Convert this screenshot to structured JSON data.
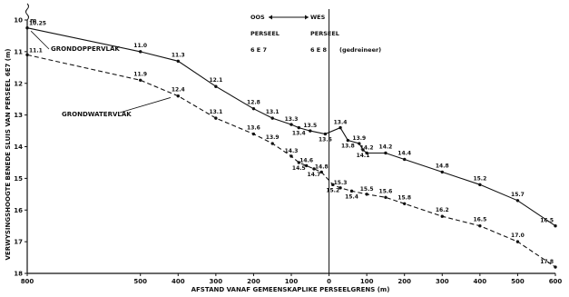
{
  "chart_data": {
    "type": "line",
    "title": "",
    "xlabel": "AFSTAND VANAF GEMEENSKAPLIKE PERSEELGRENS (m)",
    "ylabel": "VERWYSINGSHOOGTE BENEDE SLUIS VAN PERSEEL 6E7 (m)",
    "xlim": [
      -800,
      600
    ],
    "ylim": [
      10,
      18
    ],
    "y_inverted": true,
    "x_ticks": [
      {
        "value": -800,
        "label": "800"
      },
      {
        "value": -500,
        "label": "500"
      },
      {
        "value": -400,
        "label": "400"
      },
      {
        "value": -300,
        "label": "300"
      },
      {
        "value": -200,
        "label": "200"
      },
      {
        "value": -100,
        "label": "100"
      },
      {
        "value": 0,
        "label": "0"
      },
      {
        "value": 100,
        "label": "100"
      },
      {
        "value": 200,
        "label": "200"
      },
      {
        "value": 300,
        "label": "300"
      },
      {
        "value": 400,
        "label": "400"
      },
      {
        "value": 500,
        "label": "500"
      },
      {
        "value": 600,
        "label": "600"
      }
    ],
    "y_ticks": [
      {
        "value": 10,
        "label": "10"
      },
      {
        "value": 11,
        "label": "11"
      },
      {
        "value": 12,
        "label": "12"
      },
      {
        "value": 13,
        "label": "13"
      },
      {
        "value": 14,
        "label": "14"
      },
      {
        "value": 15,
        "label": "15"
      },
      {
        "value": 16,
        "label": "16"
      },
      {
        "value": 17,
        "label": "17"
      },
      {
        "value": 18,
        "label": "18"
      }
    ],
    "y_top_label": "m",
    "series": [
      {
        "name": "GRONDOPPERVLAK",
        "style": "solid",
        "points": [
          {
            "x": -800,
            "y": 10.25,
            "label": "10.25"
          },
          {
            "x": -500,
            "y": 11.0,
            "label": "11.0"
          },
          {
            "x": -400,
            "y": 11.3,
            "label": "11.3"
          },
          {
            "x": -300,
            "y": 12.1,
            "label": "12.1"
          },
          {
            "x": -200,
            "y": 12.8,
            "label": "12.8"
          },
          {
            "x": -150,
            "y": 13.1,
            "label": "13.1"
          },
          {
            "x": -100,
            "y": 13.3,
            "label": "13.3"
          },
          {
            "x": -80,
            "y": 13.4,
            "label": "13.4"
          },
          {
            "x": -50,
            "y": 13.5,
            "label": "13.5"
          },
          {
            "x": -10,
            "y": 13.6,
            "label": "13.6"
          },
          {
            "x": 30,
            "y": 13.4,
            "label": "13.4"
          },
          {
            "x": 50,
            "y": 13.8,
            "label": "13.8"
          },
          {
            "x": 80,
            "y": 13.9,
            "label": "13.9"
          },
          {
            "x": 90,
            "y": 14.1,
            "label": "14.1"
          },
          {
            "x": 100,
            "y": 14.2,
            "label": "14.2"
          },
          {
            "x": 150,
            "y": 14.2,
            "label": "14.2"
          },
          {
            "x": 200,
            "y": 14.4,
            "label": "14.4"
          },
          {
            "x": 300,
            "y": 14.8,
            "label": "14.8"
          },
          {
            "x": 400,
            "y": 15.2,
            "label": "15.2"
          },
          {
            "x": 500,
            "y": 15.7,
            "label": "15.7"
          },
          {
            "x": 600,
            "y": 16.5,
            "label": "16.5"
          }
        ]
      },
      {
        "name": "GRONDWATERVLAK",
        "style": "dashed",
        "points": [
          {
            "x": -800,
            "y": 11.1,
            "label": "11.1"
          },
          {
            "x": -500,
            "y": 11.9,
            "label": "11.9"
          },
          {
            "x": -400,
            "y": 12.4,
            "label": "12.4"
          },
          {
            "x": -300,
            "y": 13.1,
            "label": "13.1"
          },
          {
            "x": -200,
            "y": 13.6,
            "label": "13.6"
          },
          {
            "x": -150,
            "y": 13.9,
            "label": "13.9"
          },
          {
            "x": -100,
            "y": 14.3,
            "label": "14.3"
          },
          {
            "x": -80,
            "y": 14.5,
            "label": "14.5"
          },
          {
            "x": -60,
            "y": 14.6,
            "label": "14.6"
          },
          {
            "x": -40,
            "y": 14.7,
            "label": "14.7"
          },
          {
            "x": -20,
            "y": 14.8,
            "label": "14.8"
          },
          {
            "x": 10,
            "y": 15.2,
            "label": "15.2"
          },
          {
            "x": 30,
            "y": 15.3,
            "label": "15.3"
          },
          {
            "x": 60,
            "y": 15.4,
            "label": "15.4"
          },
          {
            "x": 100,
            "y": 15.5,
            "label": "15.5"
          },
          {
            "x": 150,
            "y": 15.6,
            "label": "15.6"
          },
          {
            "x": 200,
            "y": 15.8,
            "label": "15.8"
          },
          {
            "x": 300,
            "y": 16.2,
            "label": "16.2"
          },
          {
            "x": 400,
            "y": 16.5,
            "label": "16.5"
          },
          {
            "x": 500,
            "y": 17.0,
            "label": "17.0"
          },
          {
            "x": 600,
            "y": 17.8,
            "label": "17.8"
          }
        ]
      }
    ],
    "annotations": {
      "left_direction": "OOS",
      "right_direction": "WES",
      "left_parcel_word": "PERSEEL",
      "left_parcel_id": "6 E 7",
      "right_parcel_word": "PERSEEL",
      "right_parcel_id": "6 E 8",
      "right_parcel_note": "(gedreineer)"
    }
  }
}
